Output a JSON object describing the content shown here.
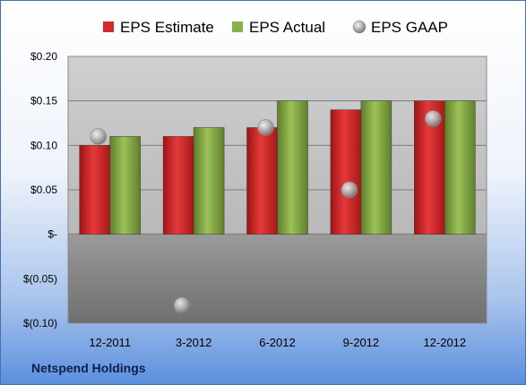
{
  "chart_data": {
    "type": "bar",
    "categories": [
      "12-2011",
      "3-2012",
      "6-2012",
      "9-2012",
      "12-2012"
    ],
    "series": [
      {
        "name": "EPS Estimate",
        "kind": "bar",
        "color": "#d42a2a",
        "values": [
          0.1,
          0.11,
          0.12,
          0.14,
          0.15
        ]
      },
      {
        "name": "EPS Actual",
        "kind": "bar",
        "color": "#8ab04a",
        "values": [
          0.11,
          0.12,
          0.15,
          0.15,
          0.15
        ]
      },
      {
        "name": "EPS GAAP",
        "kind": "scatter",
        "color": "#b0b0b0",
        "values": [
          0.11,
          -0.08,
          0.12,
          0.05,
          0.13
        ]
      }
    ],
    "ylim": [
      -0.1,
      0.2
    ],
    "yticks": [
      0.2,
      0.15,
      0.1,
      0.05,
      0.0,
      -0.05,
      -0.1
    ],
    "ytick_labels": [
      "$0.20",
      "$0.15",
      "$0.10",
      "$0.05",
      "$-",
      "$(0.05)",
      "$(0.10)"
    ],
    "grid": true,
    "legend": "top"
  },
  "footer": {
    "company": "Netspend Holdings"
  }
}
